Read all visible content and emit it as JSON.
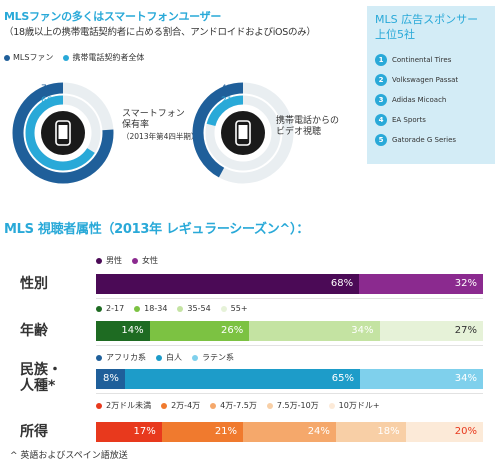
{
  "smartphone": {
    "title": "MLSファンの多くはスマートフォンユーザー",
    "subtitle": "（18歳以上の携帯電話契約者に占める割合、アンドロイドおよびiOSのみ）",
    "legend": [
      {
        "label": "MLSファン",
        "color": "#1f5f9a"
      },
      {
        "label": "携帯電話契約者全体",
        "color": "#29a9d8"
      }
    ]
  },
  "sponsors": {
    "title": "MLS 広告スポンサー上位5社",
    "items": [
      {
        "rank": "1",
        "name": "Continental Tires"
      },
      {
        "rank": "2",
        "name": "Volkswagen Passat"
      },
      {
        "rank": "3",
        "name": "Adidas Micoach"
      },
      {
        "rank": "4",
        "name": "EA Sports"
      },
      {
        "rank": "5",
        "name": "Gatorade G Series"
      }
    ]
  },
  "demographics": {
    "title": "MLS 視聴者属性（2013年 レギュラーシーズン^）："
  },
  "footnote": "^ 英語およびスペイン語放送",
  "colors": {
    "accent": "#29a9d8",
    "navy": "#1f5f9a",
    "ring_bg": "#e9eef1"
  },
  "chart_data": [
    {
      "type": "donut",
      "name": "smartphone_ownership",
      "label": [
        "スマートフォン",
        "保有率",
        "（2013年第4四半期）"
      ],
      "series": [
        {
          "name": "MLSファン",
          "values": [
            76
          ],
          "color": "#1f5f9a",
          "label": "76%"
        },
        {
          "name": "携帯電話契約者全体",
          "values": [
            66
          ],
          "color": "#29a9d8",
          "label": "66%"
        }
      ]
    },
    {
      "type": "donut",
      "name": "mobile_video_viewing",
      "label": [
        "携帯電話からの",
        "ビデオ視聴"
      ],
      "series": [
        {
          "name": "MLSファン",
          "values": [
            42
          ],
          "color": "#1f5f9a",
          "label": "42%"
        },
        {
          "name": "携帯電話契約者全体",
          "values": [
            21
          ],
          "color": "#29a9d8",
          "label": "21%"
        }
      ]
    },
    {
      "type": "bar",
      "name": "gender",
      "row_label": "性別",
      "categories": [
        "男性",
        "女性"
      ],
      "values": [
        68,
        32
      ],
      "labels": [
        "68%",
        "32%"
      ],
      "colors": [
        "#4b0a56",
        "#8b2a8f"
      ],
      "text_colors": [
        "#ffffff",
        "#ffffff"
      ]
    },
    {
      "type": "bar",
      "name": "age",
      "row_label": "年齢",
      "categories": [
        "2-17",
        "18-34",
        "35-54",
        "55+"
      ],
      "values": [
        14,
        26,
        34,
        27
      ],
      "labels": [
        "14%",
        "26%",
        "34%",
        "27%"
      ],
      "colors": [
        "#1e6b22",
        "#7cc242",
        "#c4e3a2",
        "#e6f2d8"
      ],
      "text_colors": [
        "#ffffff",
        "#ffffff",
        "#ffffff",
        "#333333"
      ]
    },
    {
      "type": "bar",
      "name": "ethnicity",
      "row_label": "民族・人種*",
      "row_label_lines": [
        "民族・",
        "人種*"
      ],
      "categories": [
        "アフリカ系",
        "白人",
        "ラテン系"
      ],
      "values": [
        8,
        65,
        34
      ],
      "labels": [
        "8%",
        "65%",
        "34%"
      ],
      "colors": [
        "#1f5f9a",
        "#1d9cc9",
        "#7fd0ec"
      ],
      "text_colors": [
        "#ffffff",
        "#ffffff",
        "#ffffff"
      ]
    },
    {
      "type": "bar",
      "name": "income",
      "row_label": "所得",
      "categories": [
        "2万ドル未満",
        "2万-4万",
        "4万-7.5万",
        "7.5万-10万",
        "10万ドル+"
      ],
      "values": [
        17,
        21,
        24,
        18,
        20
      ],
      "labels": [
        "17%",
        "21%",
        "24%",
        "18%",
        "20%"
      ],
      "colors": [
        "#e8391d",
        "#f07a2e",
        "#f5a86b",
        "#f8cfa6",
        "#fcead8"
      ],
      "text_colors": [
        "#ffffff",
        "#ffffff",
        "#ffffff",
        "#ffffff",
        "#e8391d"
      ]
    }
  ]
}
